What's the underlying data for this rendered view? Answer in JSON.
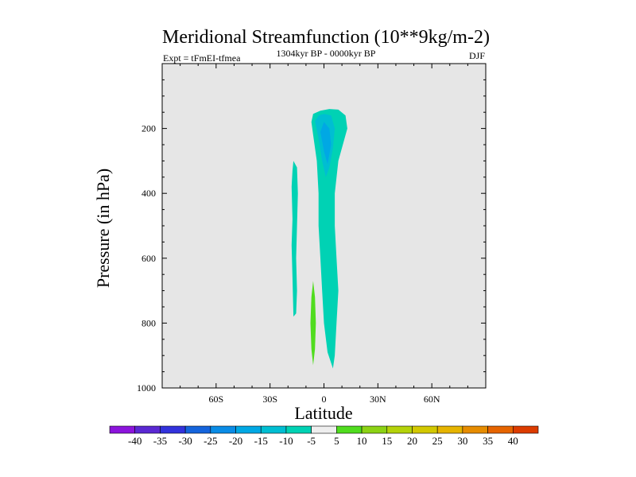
{
  "chart_data": {
    "type": "contour",
    "title": "Meridional Streamfunction (10**9kg/m-2)",
    "subtitle": "1304kyr BP - 0000kyr BP",
    "experiment_label": "Expt = tFmEI-tfmea",
    "season_label": "DJF",
    "xlabel": "Latitude",
    "ylabel": "Pressure (in hPa)",
    "xlim": [
      -90,
      90
    ],
    "ylim": [
      1000,
      0
    ],
    "x_ticks": [
      {
        "value": -60,
        "label": "60S"
      },
      {
        "value": -30,
        "label": "30S"
      },
      {
        "value": 0,
        "label": "0"
      },
      {
        "value": 30,
        "label": "30N"
      },
      {
        "value": 60,
        "label": "60N"
      }
    ],
    "y_ticks": [
      {
        "value": 200,
        "label": "200"
      },
      {
        "value": 400,
        "label": "400"
      },
      {
        "value": 600,
        "label": "600"
      },
      {
        "value": 800,
        "label": "800"
      },
      {
        "value": 1000,
        "label": "1000"
      }
    ],
    "background_color": "#e6e6e6",
    "contour_regions": [
      {
        "name": "sh-column-minus5",
        "level": -5,
        "color": "#00d2b4",
        "points": [
          [
            -17,
            780
          ],
          [
            -17.5,
            660
          ],
          [
            -18,
            560
          ],
          [
            -17.5,
            480
          ],
          [
            -18,
            380
          ],
          [
            -17.5,
            330
          ],
          [
            -17,
            300
          ],
          [
            -15,
            320
          ],
          [
            -14.5,
            400
          ],
          [
            -15,
            500
          ],
          [
            -15.5,
            600
          ],
          [
            -15,
            700
          ],
          [
            -15.5,
            770
          ]
        ]
      },
      {
        "name": "tropical-column-minus5",
        "level": -5,
        "color": "#00d2b4",
        "points": [
          [
            5,
            940
          ],
          [
            2,
            890
          ],
          [
            0,
            800
          ],
          [
            -1,
            700
          ],
          [
            -2,
            600
          ],
          [
            -3,
            500
          ],
          [
            -3,
            400
          ],
          [
            -4,
            300
          ],
          [
            -6,
            220
          ],
          [
            -7,
            180
          ],
          [
            -6,
            155
          ],
          [
            -2,
            145
          ],
          [
            3,
            140
          ],
          [
            8,
            142
          ],
          [
            12,
            160
          ],
          [
            13,
            200
          ],
          [
            11,
            240
          ],
          [
            8,
            300
          ],
          [
            6,
            400
          ],
          [
            6,
            500
          ],
          [
            7,
            600
          ],
          [
            8,
            700
          ],
          [
            7,
            800
          ],
          [
            6,
            900
          ]
        ]
      },
      {
        "name": "upper-core-minus10",
        "level": -10,
        "color": "#00bed2",
        "points": [
          [
            -5,
            178
          ],
          [
            -3,
            160
          ],
          [
            0,
            155
          ],
          [
            4,
            160
          ],
          [
            6,
            200
          ],
          [
            5,
            260
          ],
          [
            3,
            320
          ],
          [
            1,
            350
          ],
          [
            -1,
            300
          ],
          [
            -3,
            230
          ]
        ]
      },
      {
        "name": "upper-core-minus15",
        "level": -15,
        "color": "#00a8e4",
        "points": [
          [
            -2,
            210
          ],
          [
            0,
            180
          ],
          [
            3,
            200
          ],
          [
            4,
            250
          ],
          [
            2,
            310
          ],
          [
            0,
            270
          ]
        ]
      },
      {
        "name": "sh-lower-plus5",
        "level": 5,
        "color": "#50dc1e",
        "points": [
          [
            -6,
            930
          ],
          [
            -7,
            880
          ],
          [
            -7.5,
            800
          ],
          [
            -7,
            720
          ],
          [
            -6,
            670
          ],
          [
            -5,
            720
          ],
          [
            -4.5,
            800
          ],
          [
            -5,
            880
          ]
        ]
      }
    ],
    "colorbar": {
      "levels": [
        -40,
        -35,
        -30,
        -25,
        -20,
        -15,
        -10,
        -5,
        5,
        10,
        15,
        20,
        25,
        30,
        35,
        40
      ],
      "colors": [
        "#8c14dc",
        "#5a28d2",
        "#3232dc",
        "#1464dc",
        "#0a8ce6",
        "#00a8e4",
        "#00bed2",
        "#00d2b4",
        "#eeeeee",
        "#50dc1e",
        "#8cd214",
        "#b4d20a",
        "#d2c800",
        "#e6b400",
        "#e68c00",
        "#e66400",
        "#dc3c00"
      ]
    }
  }
}
